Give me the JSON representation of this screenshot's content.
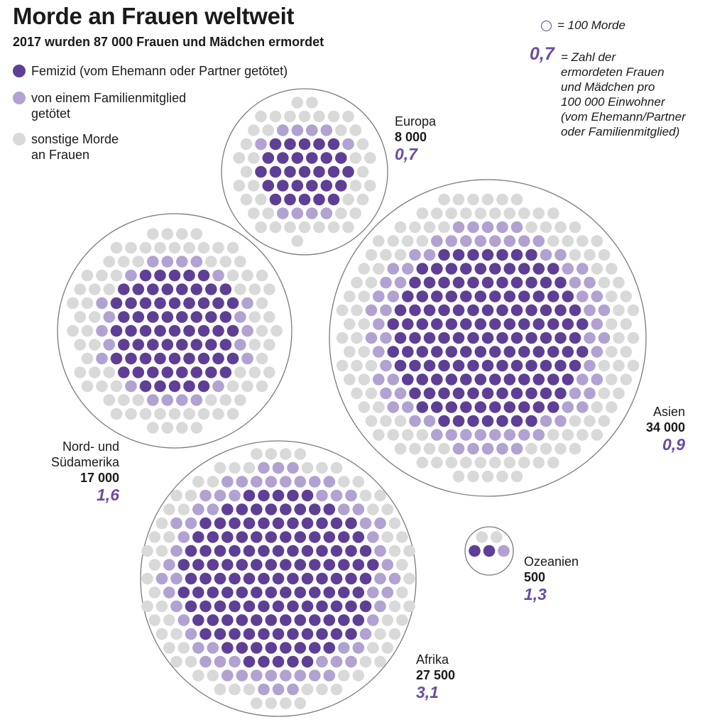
{
  "title": "Morde an Frauen weltweit",
  "subtitle": "2017 wurden 87 000 Frauen und Mädchen ermordet",
  "legend": [
    {
      "label": "Femizid (vom Ehemann oder Partner getötet)",
      "color": "#5f3f95"
    },
    {
      "label": "von einem Familienmitglied\ngetötet",
      "color": "#b1a2d2"
    },
    {
      "label": "sonstige Morde\nan Frauen",
      "color": "#d9d9d9"
    }
  ],
  "unit_note": "= 100 Morde",
  "rate_example": "0,7",
  "rate_note": "= Zahl der\nermordeten Frauen\nund Mädchen pro\n100 000 Einwohner\n(vom Ehemann/Partner\noder Familienmitglied)",
  "colors": {
    "partner": "#5f3f95",
    "family": "#b1a2d2",
    "other": "#d9d9d9",
    "ring": "#7a7a7a"
  },
  "chart_data": {
    "type": "bubble-dot-matrix",
    "unit": "1 dot = 100 Morde",
    "regions": [
      {
        "name": "Europa",
        "total_label": "8 000",
        "rate_label": "0,7",
        "total": 8000,
        "rate": 0.7,
        "dots": 80,
        "partner_dots": 29,
        "family_dots": 10
      },
      {
        "name": "Nord- und\nSüdamerika",
        "total_label": "17 000",
        "rate_label": "1,6",
        "total": 17000,
        "rate": 1.6,
        "dots": 170,
        "partner_dots": 69,
        "family_dots": 22
      },
      {
        "name": "Asien",
        "total_label": "34 000",
        "rate_label": "0,9",
        "total": 34000,
        "rate": 0.9,
        "dots": 340,
        "partner_dots": 147,
        "family_dots": 72
      },
      {
        "name": "Afrika",
        "total_label": "27 500",
        "rate_label": "3,1",
        "total": 27500,
        "rate": 3.1,
        "dots": 275,
        "partner_dots": 138,
        "family_dots": 65
      },
      {
        "name": "Ozeanien",
        "total_label": "500",
        "rate_label": "1,3",
        "total": 500,
        "rate": 1.3,
        "dots": 5,
        "partner_dots": 2,
        "family_dots": 1
      }
    ]
  }
}
